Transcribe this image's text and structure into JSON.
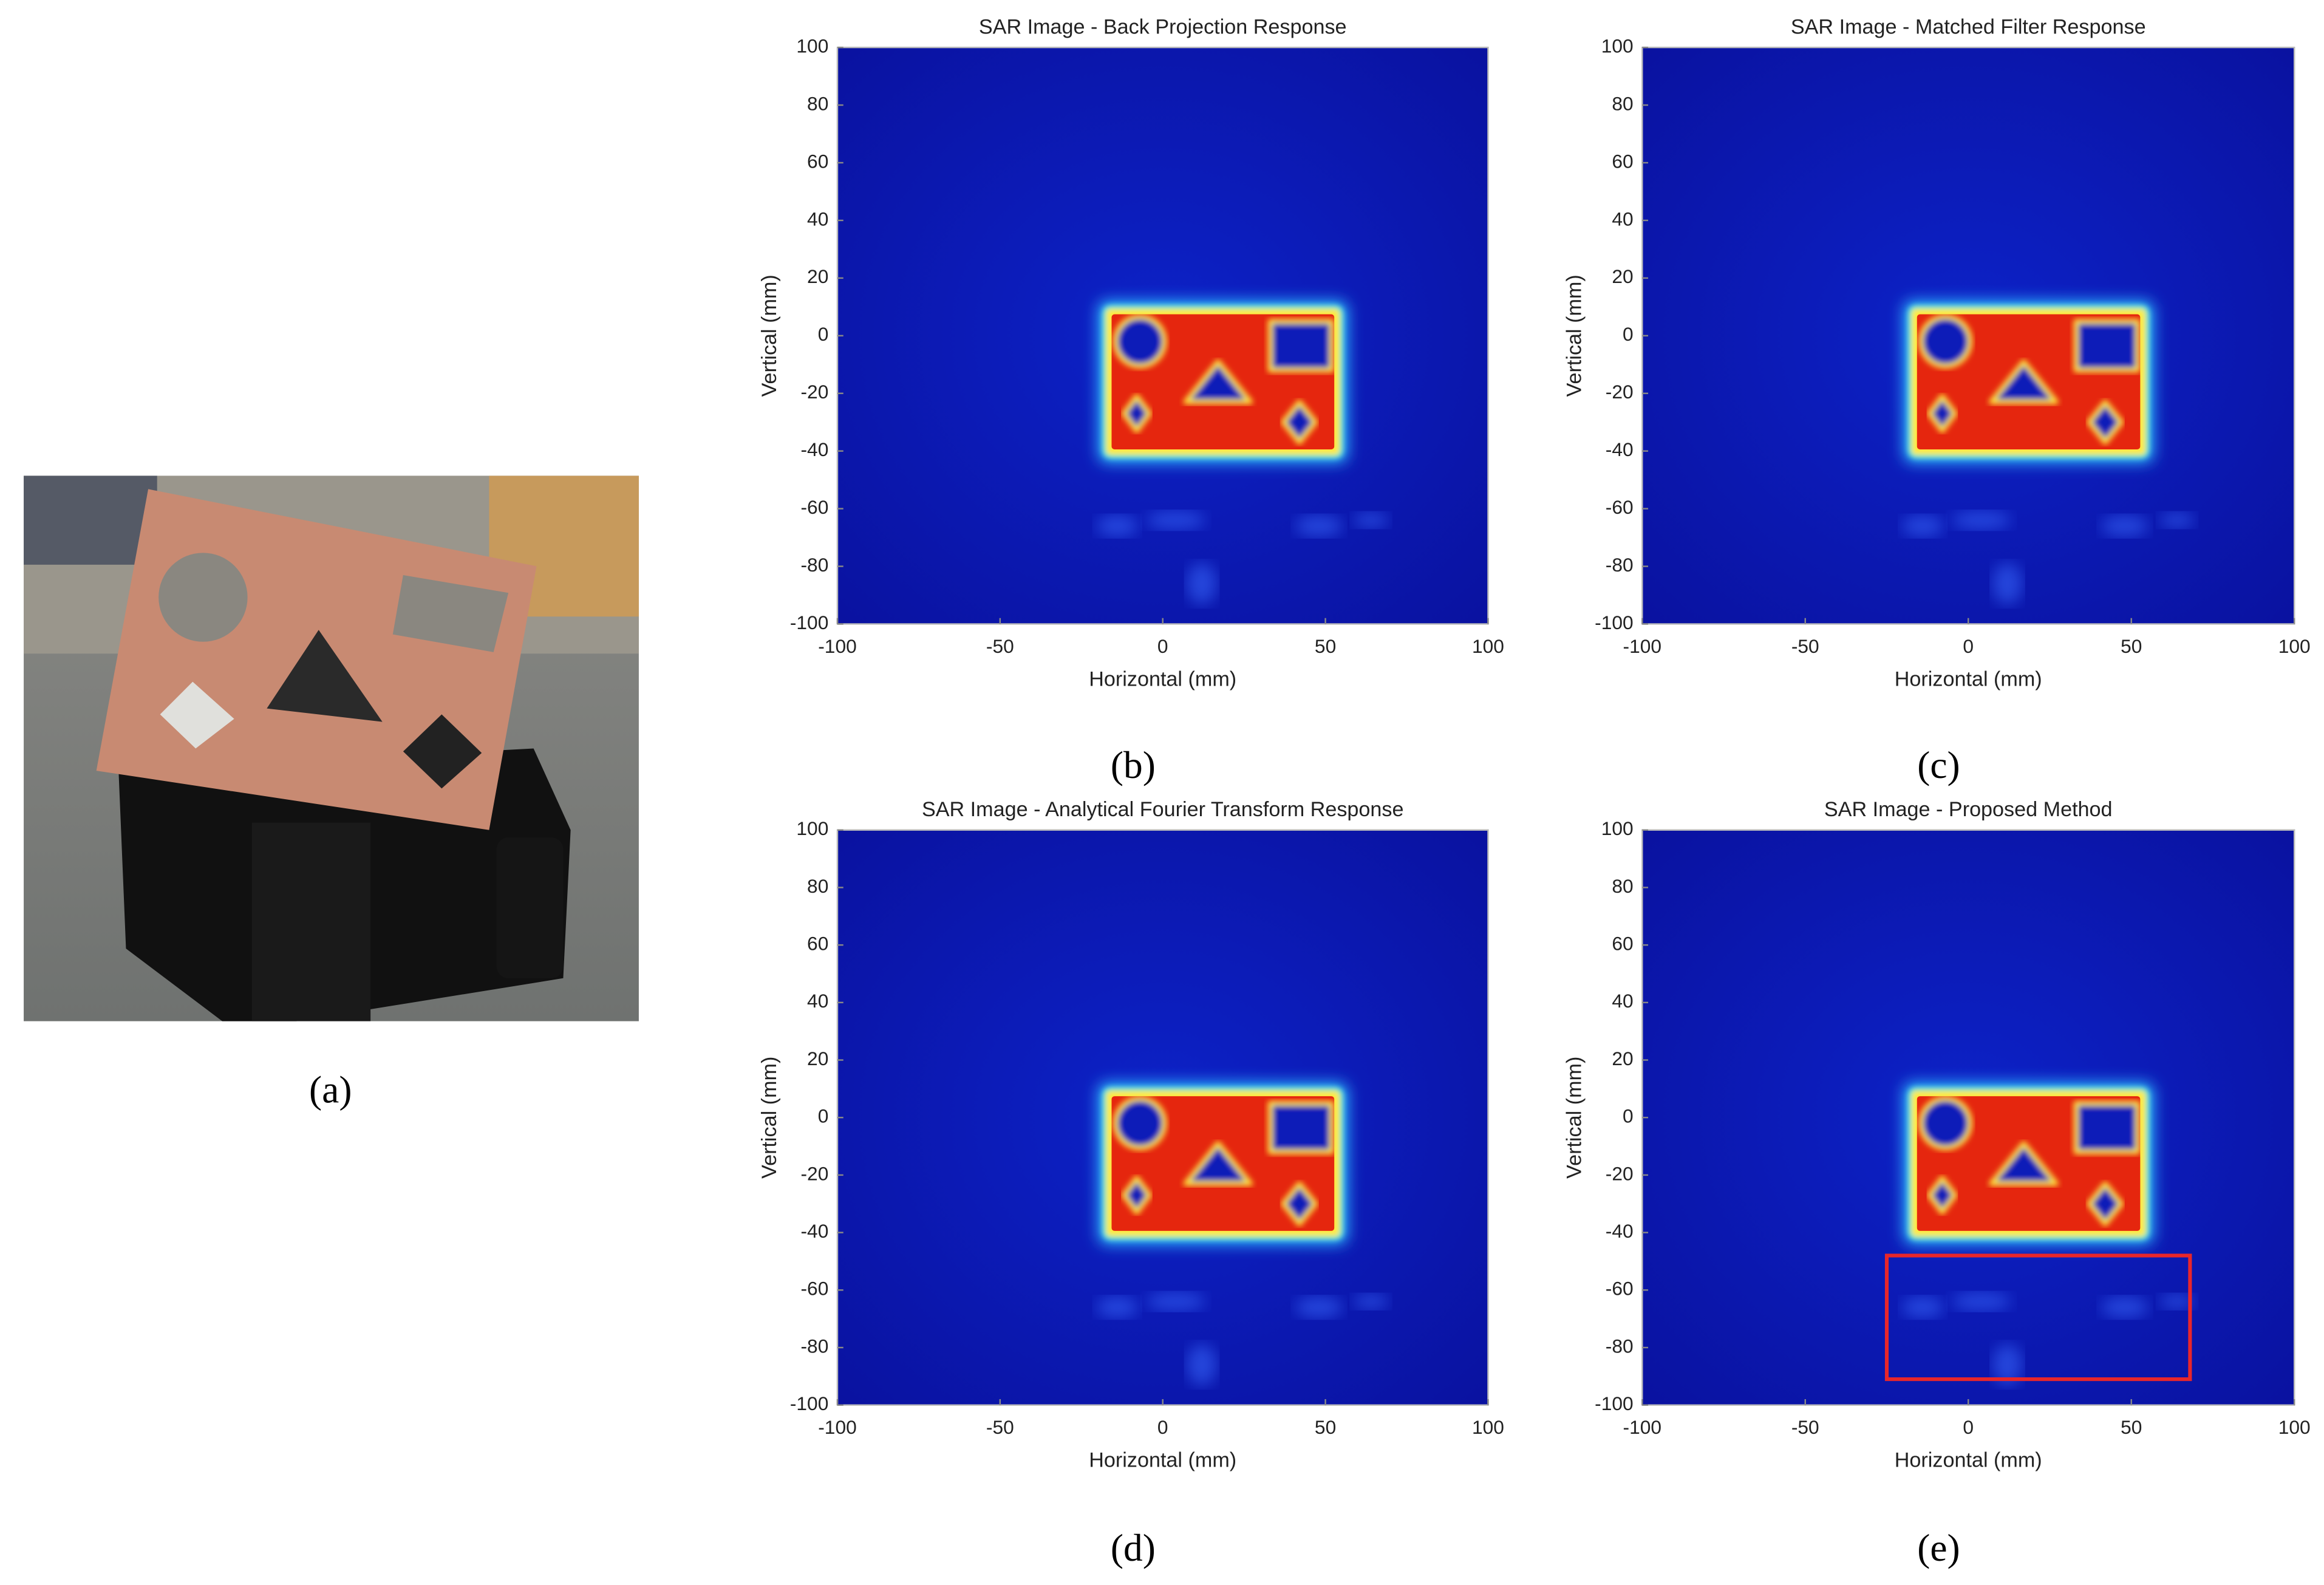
{
  "photo": {
    "label": "(a)"
  },
  "chart_data": [
    {
      "type": "heatmap",
      "title": "SAR Image - Back Projection Response",
      "panel_label": "(b)",
      "x_label": "Horizontal (mm)",
      "y_label": "Vertical (mm)",
      "xlim": [
        -100,
        100
      ],
      "ylim": [
        -100,
        100
      ],
      "xticks": [
        -100,
        -50,
        0,
        50,
        100
      ],
      "yticks": [
        -100,
        -80,
        -60,
        -40,
        -20,
        0,
        20,
        40,
        60,
        80,
        100
      ]
    },
    {
      "type": "heatmap",
      "title": "SAR Image - Matched Filter Response",
      "panel_label": "(c)",
      "x_label": "Horizontal (mm)",
      "y_label": "Vertical (mm)",
      "xlim": [
        -100,
        100
      ],
      "ylim": [
        -100,
        100
      ],
      "xticks": [
        -100,
        -50,
        0,
        50,
        100
      ],
      "yticks": [
        -100,
        -80,
        -60,
        -40,
        -20,
        0,
        20,
        40,
        60,
        80,
        100
      ]
    },
    {
      "type": "heatmap",
      "title": "SAR Image - Analytical Fourier Transform Response",
      "panel_label": "(d)",
      "x_label": "Horizontal (mm)",
      "y_label": "Vertical (mm)",
      "xlim": [
        -100,
        100
      ],
      "ylim": [
        -100,
        100
      ],
      "xticks": [
        -100,
        -50,
        0,
        50,
        100
      ],
      "yticks": [
        -100,
        -80,
        -60,
        -40,
        -20,
        0,
        20,
        40,
        60,
        80,
        100
      ]
    },
    {
      "type": "heatmap",
      "title": "SAR Image - Proposed Method",
      "panel_label": "(e)",
      "x_label": "Horizontal (mm)",
      "y_label": "Vertical (mm)",
      "xlim": [
        -100,
        100
      ],
      "ylim": [
        -100,
        100
      ],
      "xticks": [
        -100,
        -50,
        0,
        50,
        100
      ],
      "yticks": [
        -100,
        -80,
        -60,
        -40,
        -20,
        0,
        20,
        40,
        60,
        80,
        100
      ],
      "highlight": {
        "x": [
          -25,
          68
        ],
        "y": [
          -91,
          -48
        ],
        "color": "#e8262b"
      }
    }
  ]
}
